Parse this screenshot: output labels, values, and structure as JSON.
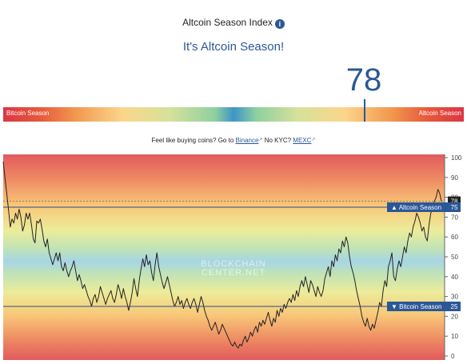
{
  "header": {
    "title": "Altcoin Season Index",
    "info_icon": "info-circle-icon",
    "subtitle": "It's Altcoin Season!",
    "index_value": "78"
  },
  "gauge": {
    "left_label": "Bitcoin Season",
    "right_label": "Altcoin Season",
    "value": 78,
    "range": [
      0,
      100
    ]
  },
  "promo": {
    "prefix": "Feel like buying coins? Go to",
    "link1": "Binance",
    "middle": "No KYC?",
    "link2": "MEXC"
  },
  "chart_data": {
    "type": "line",
    "ylim": [
      0,
      100
    ],
    "yticks": [
      0,
      10,
      20,
      30,
      40,
      50,
      60,
      70,
      80,
      90,
      100
    ],
    "y_axis_side": "right",
    "background": "vertical red-yellow-blue-yellow-red gradient",
    "watermark": [
      "BLOCKCHAIN",
      "CENTER.NET"
    ],
    "current_value": 78,
    "current_label": "78",
    "thresholds": [
      {
        "label": "▲ Altcoin Season",
        "value": 75,
        "value_label": "75"
      },
      {
        "label": "▼ Bitcoin Season",
        "value": 25,
        "value_label": "25"
      }
    ],
    "series": [
      {
        "values": [
          98,
          90,
          82,
          74,
          65,
          69,
          67,
          72,
          69,
          74,
          70,
          63,
          66,
          72,
          69,
          72,
          66,
          59,
          57,
          68,
          67,
          69,
          64,
          58,
          55,
          59,
          52,
          49,
          46,
          49,
          52,
          48,
          52,
          45,
          43,
          47,
          43,
          40,
          43,
          45,
          48,
          43,
          38,
          41,
          38,
          34,
          36,
          33,
          30,
          28,
          25,
          29,
          31,
          27,
          30,
          35,
          32,
          29,
          26,
          29,
          31,
          33,
          29,
          27,
          31,
          36,
          33,
          29,
          34,
          30,
          27,
          23,
          27,
          32,
          39,
          34,
          30,
          38,
          44,
          49,
          45,
          51,
          46,
          48,
          42,
          38,
          46,
          52,
          45,
          41,
          37,
          34,
          37,
          40,
          36,
          32,
          28,
          25,
          27,
          30,
          26,
          28,
          24,
          27,
          29,
          26,
          24,
          27,
          29,
          26,
          22,
          26,
          30,
          27,
          23,
          20,
          18,
          15,
          13,
          15,
          17,
          14,
          11,
          13,
          16,
          14,
          12,
          10,
          8,
          6,
          5,
          7,
          5,
          4,
          6,
          5,
          8,
          10,
          7,
          9,
          12,
          10,
          13,
          15,
          12,
          17,
          15,
          18,
          16,
          19,
          22,
          18,
          15,
          19,
          17,
          23,
          20,
          24,
          22,
          26,
          24,
          27,
          29,
          27,
          31,
          28,
          33,
          30,
          35,
          38,
          35,
          40,
          36,
          32,
          38,
          36,
          33,
          30,
          35,
          32,
          30,
          33,
          39,
          42,
          45,
          40,
          48,
          45,
          51,
          48,
          54,
          52,
          58,
          55,
          60,
          57,
          50,
          45,
          42,
          38,
          33,
          29,
          25,
          20,
          17,
          15,
          19,
          15,
          13,
          16,
          14,
          18,
          22,
          27,
          25,
          33,
          38,
          35,
          45,
          48,
          52,
          40,
          38,
          44,
          48,
          45,
          50,
          55,
          52,
          58,
          62,
          60,
          65,
          68,
          72,
          70,
          67,
          63,
          65,
          60,
          58,
          66,
          72,
          74,
          78,
          80,
          84,
          82,
          78
        ]
      }
    ]
  }
}
